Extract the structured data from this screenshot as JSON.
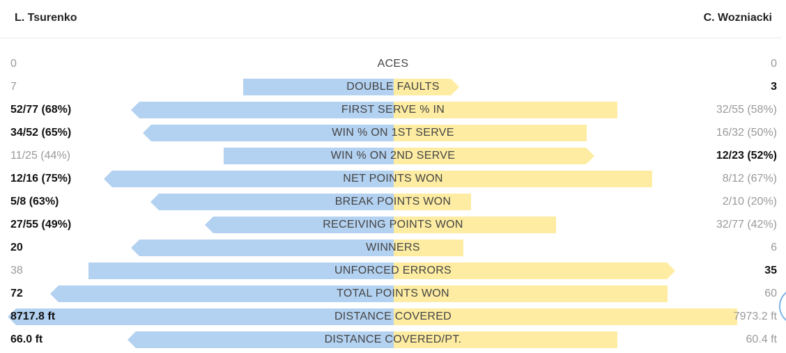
{
  "header": {
    "player_left": "L. Tsurenko",
    "player_right": "C. Wozniacki"
  },
  "colors": {
    "left_bar": "#b3d1f0",
    "right_bar": "#fdeca1",
    "winner_text": "#111111",
    "loser_text": "#999999"
  },
  "stats": [
    {
      "label": "ACES",
      "left": "0",
      "right": "0",
      "left_share": 0,
      "right_share": 0,
      "lead": "none"
    },
    {
      "label": "DOUBLE FAULTS",
      "left": "7",
      "right": "3",
      "left_share": 0.39,
      "right_share": 0.17,
      "lead": "right"
    },
    {
      "label": "FIRST SERVE % IN",
      "left": "52/77 (68%)",
      "right": "32/55 (58%)",
      "left_share": 0.68,
      "right_share": 0.58,
      "lead": "left"
    },
    {
      "label": "WIN % ON 1ST SERVE",
      "left": "34/52 (65%)",
      "right": "16/32 (50%)",
      "left_share": 0.65,
      "right_share": 0.5,
      "lead": "left"
    },
    {
      "label": "WIN % ON 2ND SERVE",
      "left": "11/25 (44%)",
      "right": "12/23 (52%)",
      "left_share": 0.44,
      "right_share": 0.52,
      "lead": "right"
    },
    {
      "label": "NET POINTS WON",
      "left": "12/16 (75%)",
      "right": "8/12 (67%)",
      "left_share": 0.75,
      "right_share": 0.67,
      "lead": "left"
    },
    {
      "label": "BREAK POINTS WON",
      "left": "5/8 (63%)",
      "right": "2/10 (20%)",
      "left_share": 0.63,
      "right_share": 0.2,
      "lead": "left"
    },
    {
      "label": "RECEIVING POINTS WON",
      "left": "27/55 (49%)",
      "right": "32/77 (42%)",
      "left_share": 0.49,
      "right_share": 0.42,
      "lead": "left"
    },
    {
      "label": "WINNERS",
      "left": "20",
      "right": "6",
      "left_share": 0.68,
      "right_share": 0.18,
      "lead": "left"
    },
    {
      "label": "UNFORCED ERRORS",
      "left": "38",
      "right": "35",
      "left_share": 0.79,
      "right_share": 0.73,
      "lead": "right"
    },
    {
      "label": "TOTAL POINTS WON",
      "left": "72",
      "right": "60",
      "left_share": 0.89,
      "right_share": 0.71,
      "lead": "left"
    },
    {
      "label": "DISTANCE COVERED",
      "left": "8717.8 ft",
      "right": "7973.2 ft",
      "left_share": 1.0,
      "right_share": 0.89,
      "lead": "left"
    },
    {
      "label": "DISTANCE COVERED/PT.",
      "left": "66.0 ft",
      "right": "60.4 ft",
      "left_share": 0.69,
      "right_share": 0.58,
      "lead": "left"
    }
  ]
}
